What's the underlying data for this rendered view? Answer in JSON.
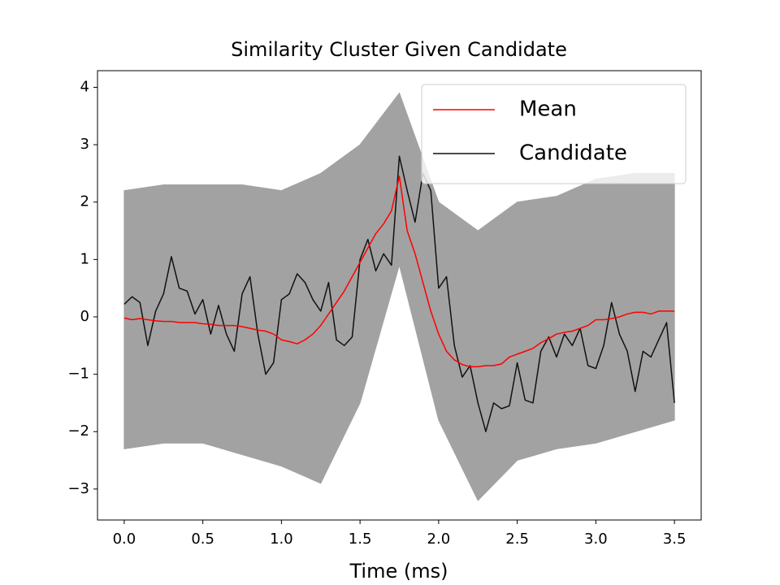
{
  "chart_data": {
    "type": "line",
    "title": "Similarity Cluster Given Candidate",
    "x_label": "Time (ms)",
    "xlim": [
      -0.17,
      3.67
    ],
    "ylim": [
      -3.54,
      4.29
    ],
    "xticks": [
      {
        "value": 0,
        "label": "0.0"
      },
      0.5,
      {
        "value": 1,
        "label": "1.0"
      },
      1.5,
      {
        "value": 2,
        "label": "2.0"
      },
      2.5,
      {
        "value": 3,
        "label": "3.0"
      },
      3.5
    ],
    "yticks": [
      {
        "value": -3,
        "label": "−3"
      },
      {
        "value": -2,
        "label": "−2"
      },
      {
        "value": -1,
        "label": "−1"
      },
      0,
      1,
      2,
      3,
      4
    ],
    "legend": "upper right",
    "band": {
      "color": "#999999",
      "x": [
        0,
        0.25,
        0.5,
        0.75,
        1,
        1.25,
        1.5,
        1.75,
        2,
        2.25,
        2.5,
        2.75,
        3,
        3.25,
        3.5
      ],
      "upper": [
        2.2,
        2.3,
        2.3,
        2.3,
        2.2,
        2.5,
        3.0,
        3.9,
        2.0,
        1.5,
        2.0,
        2.1,
        2.4,
        2.5,
        2.5
      ],
      "lower": [
        -2.3,
        -2.2,
        -2.2,
        -2.4,
        -2.6,
        -2.9,
        -1.5,
        0.9,
        -1.8,
        -3.2,
        -2.5,
        -2.3,
        -2.2,
        -2.0,
        -1.8
      ]
    },
    "x": [
      0,
      0.05,
      0.1,
      0.15,
      0.2,
      0.25,
      0.3,
      0.35,
      0.4,
      0.45,
      0.5,
      0.55,
      0.6,
      0.65,
      0.7,
      0.75,
      0.8,
      0.85,
      0.9,
      0.95,
      1,
      1.05,
      1.1,
      1.15,
      1.2,
      1.25,
      1.3,
      1.35,
      1.4,
      1.45,
      1.5,
      1.55,
      1.6,
      1.65,
      1.7,
      1.75,
      1.8,
      1.85,
      1.9,
      1.95,
      2,
      2.05,
      2.1,
      2.15,
      2.2,
      2.25,
      2.3,
      2.35,
      2.4,
      2.45,
      2.5,
      2.55,
      2.6,
      2.65,
      2.7,
      2.75,
      2.8,
      2.85,
      2.9,
      2.95,
      3,
      3.05,
      3.1,
      3.15,
      3.2,
      3.25,
      3.3,
      3.35,
      3.4,
      3.45,
      3.5
    ],
    "series": [
      {
        "name": "Mean",
        "color": "#ff0000",
        "values": [
          -0.02,
          -0.05,
          -0.03,
          -0.05,
          -0.07,
          -0.08,
          -0.08,
          -0.1,
          -0.1,
          -0.1,
          -0.12,
          -0.13,
          -0.15,
          -0.15,
          -0.15,
          -0.17,
          -0.2,
          -0.23,
          -0.25,
          -0.3,
          -0.4,
          -0.43,
          -0.47,
          -0.4,
          -0.3,
          -0.15,
          0.05,
          0.25,
          0.45,
          0.7,
          0.95,
          1.2,
          1.45,
          1.62,
          1.85,
          2.45,
          1.5,
          1.1,
          0.6,
          0.1,
          -0.3,
          -0.6,
          -0.75,
          -0.83,
          -0.87,
          -0.87,
          -0.85,
          -0.85,
          -0.82,
          -0.7,
          -0.65,
          -0.6,
          -0.55,
          -0.45,
          -0.38,
          -0.3,
          -0.27,
          -0.25,
          -0.2,
          -0.15,
          -0.05,
          -0.05,
          -0.03,
          0.0,
          0.05,
          0.08,
          0.08,
          0.05,
          0.1,
          0.1,
          0.1
        ]
      },
      {
        "name": "Candidate",
        "color": "#111111",
        "values": [
          0.22,
          0.35,
          0.25,
          -0.5,
          0.1,
          0.4,
          1.05,
          0.5,
          0.45,
          0.05,
          0.3,
          -0.3,
          0.2,
          -0.3,
          -0.6,
          0.4,
          0.7,
          -0.3,
          -1.0,
          -0.8,
          0.3,
          0.4,
          0.75,
          0.6,
          0.3,
          0.1,
          0.6,
          -0.4,
          -0.5,
          -0.35,
          1.0,
          1.35,
          0.8,
          1.1,
          0.9,
          2.8,
          2.2,
          1.65,
          2.5,
          2.2,
          0.5,
          0.7,
          -0.5,
          -1.05,
          -0.85,
          -1.5,
          -2.0,
          -1.5,
          -1.6,
          -1.55,
          -0.8,
          -1.45,
          -1.5,
          -0.6,
          -0.35,
          -0.7,
          -0.3,
          -0.5,
          -0.2,
          -0.85,
          -0.9,
          -0.5,
          0.25,
          -0.3,
          -0.6,
          -1.3,
          -0.6,
          -0.7,
          -0.4,
          -0.1,
          -1.5
        ]
      }
    ]
  }
}
